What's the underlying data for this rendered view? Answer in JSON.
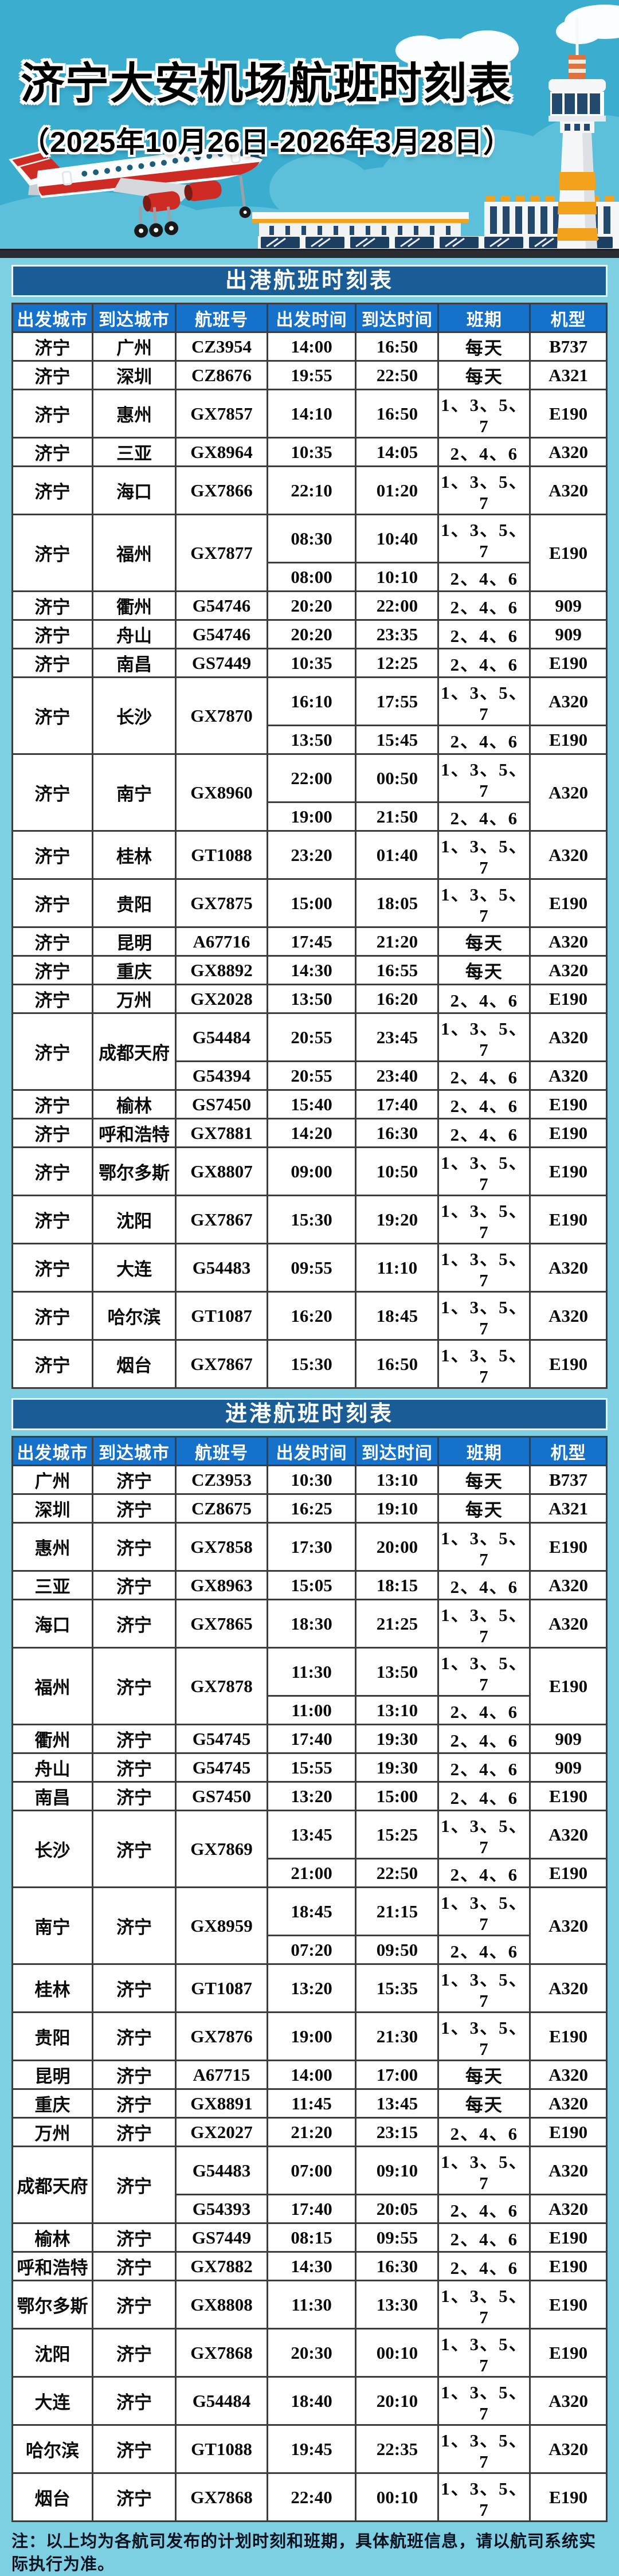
{
  "header": {
    "title": "济宁大安机场航班时刻表",
    "date_range": "（2025年10月26日-2026年3月28日）"
  },
  "hero_icons": [
    "airplane-illustration",
    "control-tower-illustration",
    "terminal-building-illustration",
    "cloud-icon",
    "runway-road-strip"
  ],
  "colors": {
    "sky": "#3BAED0",
    "page_background": "#7ECFE2",
    "section_header_bg": "#1A5C95",
    "column_header_bg": "#1571C9",
    "table_border": "#3D3D3D",
    "plane_red": "#CE2B24",
    "tower_orange": "#F2A21C",
    "glass_navy": "#1C3E63"
  },
  "departures": {
    "section_title": "出港航班时刻表",
    "columns": [
      "出发城市",
      "到达城市",
      "航班号",
      "出发时间",
      "到达时间",
      "班期",
      "机型"
    ],
    "rows": [
      {
        "from": "济宁",
        "to": "广州",
        "flight": "CZ3954",
        "aircraft": "B737",
        "schedules": [
          {
            "dep": "14:00",
            "arr": "16:50",
            "days": "每天"
          }
        ]
      },
      {
        "from": "济宁",
        "to": "深圳",
        "flight": "CZ8676",
        "aircraft": "A321",
        "schedules": [
          {
            "dep": "19:55",
            "arr": "22:50",
            "days": "每天"
          }
        ]
      },
      {
        "from": "济宁",
        "to": "惠州",
        "flight": "GX7857",
        "aircraft": "E190",
        "schedules": [
          {
            "dep": "14:10",
            "arr": "16:50",
            "days": "1、3、5、7"
          }
        ]
      },
      {
        "from": "济宁",
        "to": "三亚",
        "flight": "GX8964",
        "aircraft": "A320",
        "schedules": [
          {
            "dep": "10:35",
            "arr": "14:05",
            "days": "2、4、6"
          }
        ]
      },
      {
        "from": "济宁",
        "to": "海口",
        "flight": "GX7866",
        "aircraft": "A320",
        "schedules": [
          {
            "dep": "22:10",
            "arr": "01:20",
            "days": "1、3、5、7"
          }
        ]
      },
      {
        "from": "济宁",
        "to": "福州",
        "flight": "GX7877",
        "aircraft": "E190",
        "schedules": [
          {
            "dep": "08:30",
            "arr": "10:40",
            "days": "1、3、5、7"
          },
          {
            "dep": "08:00",
            "arr": "10:10",
            "days": "2、4、6"
          }
        ]
      },
      {
        "from": "济宁",
        "to": "衢州",
        "flight": "G54746",
        "aircraft": "909",
        "schedules": [
          {
            "dep": "20:20",
            "arr": "22:00",
            "days": "2、4、6"
          }
        ]
      },
      {
        "from": "济宁",
        "to": "舟山",
        "flight": "G54746",
        "aircraft": "909",
        "schedules": [
          {
            "dep": "20:20",
            "arr": "23:35",
            "days": "2、4、6"
          }
        ]
      },
      {
        "from": "济宁",
        "to": "南昌",
        "flight": "GS7449",
        "aircraft": "E190",
        "schedules": [
          {
            "dep": "10:35",
            "arr": "12:25",
            "days": "2、4、6"
          }
        ]
      },
      {
        "from": "济宁",
        "to": "长沙",
        "flight": "GX7870",
        "schedules": [
          {
            "dep": "16:10",
            "arr": "17:55",
            "days": "1、3、5、7",
            "aircraft": "A320"
          },
          {
            "dep": "13:50",
            "arr": "15:45",
            "days": "2、4、6",
            "aircraft": "E190"
          }
        ]
      },
      {
        "from": "济宁",
        "to": "南宁",
        "flight": "GX8960",
        "aircraft": "A320",
        "schedules": [
          {
            "dep": "22:00",
            "arr": "00:50",
            "days": "1、3、5、7"
          },
          {
            "dep": "19:00",
            "arr": "21:50",
            "days": "2、4、6"
          }
        ]
      },
      {
        "from": "济宁",
        "to": "桂林",
        "flight": "GT1088",
        "aircraft": "A320",
        "schedules": [
          {
            "dep": "23:20",
            "arr": "01:40",
            "days": "1、3、5、7"
          }
        ]
      },
      {
        "from": "济宁",
        "to": "贵阳",
        "flight": "GX7875",
        "aircraft": "E190",
        "schedules": [
          {
            "dep": "15:00",
            "arr": "18:05",
            "days": "1、3、5、7"
          }
        ]
      },
      {
        "from": "济宁",
        "to": "昆明",
        "flight": "A67716",
        "aircraft": "A320",
        "schedules": [
          {
            "dep": "17:45",
            "arr": "21:20",
            "days": "每天"
          }
        ]
      },
      {
        "from": "济宁",
        "to": "重庆",
        "flight": "GX8892",
        "aircraft": "A320",
        "schedules": [
          {
            "dep": "14:30",
            "arr": "16:55",
            "days": "每天"
          }
        ]
      },
      {
        "from": "济宁",
        "to": "万州",
        "flight": "GX2028",
        "aircraft": "E190",
        "schedules": [
          {
            "dep": "13:50",
            "arr": "16:20",
            "days": "2、4、6"
          }
        ]
      },
      {
        "from": "济宁",
        "to": "成都天府",
        "schedules": [
          {
            "flight": "G54484",
            "dep": "20:55",
            "arr": "23:45",
            "days": "1、3、5、7",
            "aircraft": "A320"
          },
          {
            "flight": "G54394",
            "dep": "20:55",
            "arr": "23:40",
            "days": "2、4、6",
            "aircraft": "A320"
          }
        ]
      },
      {
        "from": "济宁",
        "to": "榆林",
        "flight": "GS7450",
        "aircraft": "E190",
        "schedules": [
          {
            "dep": "15:40",
            "arr": "17:40",
            "days": "2、4、6"
          }
        ]
      },
      {
        "from": "济宁",
        "to": "呼和浩特",
        "flight": "GX7881",
        "aircraft": "E190",
        "schedules": [
          {
            "dep": "14:20",
            "arr": "16:30",
            "days": "2、4、6"
          }
        ]
      },
      {
        "from": "济宁",
        "to": "鄂尔多斯",
        "flight": "GX8807",
        "aircraft": "E190",
        "schedules": [
          {
            "dep": "09:00",
            "arr": "10:50",
            "days": "1、3、5、7"
          }
        ]
      },
      {
        "from": "济宁",
        "to": "沈阳",
        "flight": "GX7867",
        "aircraft": "E190",
        "schedules": [
          {
            "dep": "15:30",
            "arr": "19:20",
            "days": "1、3、5、7"
          }
        ]
      },
      {
        "from": "济宁",
        "to": "大连",
        "flight": "G54483",
        "aircraft": "A320",
        "schedules": [
          {
            "dep": "09:55",
            "arr": "11:10",
            "days": "1、3、5、7"
          }
        ]
      },
      {
        "from": "济宁",
        "to": "哈尔滨",
        "flight": "GT1087",
        "aircraft": "A320",
        "schedules": [
          {
            "dep": "16:20",
            "arr": "18:45",
            "days": "1、3、5、7"
          }
        ]
      },
      {
        "from": "济宁",
        "to": "烟台",
        "flight": "GX7867",
        "aircraft": "E190",
        "schedules": [
          {
            "dep": "15:30",
            "arr": "16:50",
            "days": "1、3、5、7"
          }
        ]
      }
    ]
  },
  "arrivals": {
    "section_title": "进港航班时刻表",
    "columns": [
      "出发城市",
      "到达城市",
      "航班号",
      "出发时间",
      "到达时间",
      "班期",
      "机型"
    ],
    "rows": [
      {
        "from": "广州",
        "to": "济宁",
        "flight": "CZ3953",
        "aircraft": "B737",
        "schedules": [
          {
            "dep": "10:30",
            "arr": "13:10",
            "days": "每天"
          }
        ]
      },
      {
        "from": "深圳",
        "to": "济宁",
        "flight": "CZ8675",
        "aircraft": "A321",
        "schedules": [
          {
            "dep": "16:25",
            "arr": "19:10",
            "days": "每天"
          }
        ]
      },
      {
        "from": "惠州",
        "to": "济宁",
        "flight": "GX7858",
        "aircraft": "E190",
        "schedules": [
          {
            "dep": "17:30",
            "arr": "20:00",
            "days": "1、3、5、7"
          }
        ]
      },
      {
        "from": "三亚",
        "to": "济宁",
        "flight": "GX8963",
        "aircraft": "A320",
        "schedules": [
          {
            "dep": "15:05",
            "arr": "18:15",
            "days": "2、4、6"
          }
        ]
      },
      {
        "from": "海口",
        "to": "济宁",
        "flight": "GX7865",
        "aircraft": "A320",
        "schedules": [
          {
            "dep": "18:30",
            "arr": "21:25",
            "days": "1、3、5、7"
          }
        ]
      },
      {
        "from": "福州",
        "to": "济宁",
        "flight": "GX7878",
        "aircraft": "E190",
        "schedules": [
          {
            "dep": "11:30",
            "arr": "13:50",
            "days": "1、3、5、7"
          },
          {
            "dep": "11:00",
            "arr": "13:10",
            "days": "2、4、6"
          }
        ]
      },
      {
        "from": "衢州",
        "to": "济宁",
        "flight": "G54745",
        "aircraft": "909",
        "schedules": [
          {
            "dep": "17:40",
            "arr": "19:30",
            "days": "2、4、6"
          }
        ]
      },
      {
        "from": "舟山",
        "to": "济宁",
        "flight": "G54745",
        "aircraft": "909",
        "schedules": [
          {
            "dep": "15:55",
            "arr": "19:30",
            "days": "2、4、6"
          }
        ]
      },
      {
        "from": "南昌",
        "to": "济宁",
        "flight": "GS7450",
        "aircraft": "E190",
        "schedules": [
          {
            "dep": "13:20",
            "arr": "15:00",
            "days": "2、4、6"
          }
        ]
      },
      {
        "from": "长沙",
        "to": "济宁",
        "flight": "GX7869",
        "schedules": [
          {
            "dep": "13:45",
            "arr": "15:25",
            "days": "1、3、5、7",
            "aircraft": "A320"
          },
          {
            "dep": "21:00",
            "arr": "22:50",
            "days": "2、4、6",
            "aircraft": "E190"
          }
        ]
      },
      {
        "from": "南宁",
        "to": "济宁",
        "flight": "GX8959",
        "aircraft": "A320",
        "schedules": [
          {
            "dep": "18:45",
            "arr": "21:15",
            "days": "1、3、5、7"
          },
          {
            "dep": "07:20",
            "arr": "09:50",
            "days": "2、4、6"
          }
        ]
      },
      {
        "from": "桂林",
        "to": "济宁",
        "flight": "GT1087",
        "aircraft": "A320",
        "schedules": [
          {
            "dep": "13:20",
            "arr": "15:35",
            "days": "1、3、5、7"
          }
        ]
      },
      {
        "from": "贵阳",
        "to": "济宁",
        "flight": "GX7876",
        "aircraft": "E190",
        "schedules": [
          {
            "dep": "19:00",
            "arr": "21:30",
            "days": "1、3、5、7"
          }
        ]
      },
      {
        "from": "昆明",
        "to": "济宁",
        "flight": "A67715",
        "aircraft": "A320",
        "schedules": [
          {
            "dep": "14:00",
            "arr": "17:00",
            "days": "每天"
          }
        ]
      },
      {
        "from": "重庆",
        "to": "济宁",
        "flight": "GX8891",
        "aircraft": "A320",
        "schedules": [
          {
            "dep": "11:45",
            "arr": "13:45",
            "days": "每天"
          }
        ]
      },
      {
        "from": "万州",
        "to": "济宁",
        "flight": "GX2027",
        "aircraft": "E190",
        "schedules": [
          {
            "dep": "21:20",
            "arr": "23:15",
            "days": "2、4、6"
          }
        ]
      },
      {
        "from": "成都天府",
        "to": "济宁",
        "schedules": [
          {
            "flight": "G54483",
            "dep": "07:00",
            "arr": "09:10",
            "days": "1、3、5、7",
            "aircraft": "A320"
          },
          {
            "flight": "G54393",
            "dep": "17:40",
            "arr": "20:05",
            "days": "2、4、6",
            "aircraft": "A320"
          }
        ]
      },
      {
        "from": "榆林",
        "to": "济宁",
        "flight": "GS7449",
        "aircraft": "E190",
        "schedules": [
          {
            "dep": "08:15",
            "arr": "09:55",
            "days": "2、4、6"
          }
        ]
      },
      {
        "from": "呼和浩特",
        "to": "济宁",
        "flight": "GX7882",
        "aircraft": "E190",
        "schedules": [
          {
            "dep": "14:30",
            "arr": "16:30",
            "days": "2、4、6"
          }
        ]
      },
      {
        "from": "鄂尔多斯",
        "to": "济宁",
        "flight": "GX8808",
        "aircraft": "E190",
        "schedules": [
          {
            "dep": "11:30",
            "arr": "13:30",
            "days": "1、3、5、7"
          }
        ]
      },
      {
        "from": "沈阳",
        "to": "济宁",
        "flight": "GX7868",
        "aircraft": "E190",
        "schedules": [
          {
            "dep": "20:30",
            "arr": "00:10",
            "days": "1、3、5、7"
          }
        ]
      },
      {
        "from": "大连",
        "to": "济宁",
        "flight": "G54484",
        "aircraft": "A320",
        "schedules": [
          {
            "dep": "18:40",
            "arr": "20:10",
            "days": "1、3、5、7"
          }
        ]
      },
      {
        "from": "哈尔滨",
        "to": "济宁",
        "flight": "GT1088",
        "aircraft": "A320",
        "schedules": [
          {
            "dep": "19:45",
            "arr": "22:35",
            "days": "1、3、5、7"
          }
        ]
      },
      {
        "from": "烟台",
        "to": "济宁",
        "flight": "GX7868",
        "aircraft": "E190",
        "schedules": [
          {
            "dep": "22:40",
            "arr": "00:10",
            "days": "1、3、5、7"
          }
        ]
      }
    ]
  },
  "note": "注：以上均为各航司发布的计划时刻和班期，具体航班信息，请以航司系统实际执行为准。"
}
